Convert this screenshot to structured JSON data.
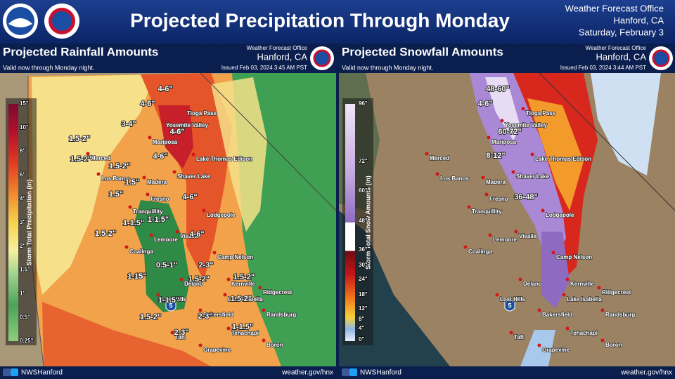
{
  "header": {
    "title": "Projected Precipitation Through Monday",
    "office": "Weather Forecast Office",
    "location": "Hanford, CA",
    "date": "Saturday, February 3"
  },
  "map_labels": {
    "cities": [
      "Merced",
      "Los Banos",
      "Madera",
      "Fresno",
      "Tranquillity",
      "Mariposa",
      "Yosemite Valley",
      "Tioga Pass",
      "Lake Thomas Edison",
      "Shaver Lake",
      "Lodgepole",
      "Lemoore",
      "Visalia",
      "Coalinga",
      "Camp Nelson",
      "Delano",
      "Kernville",
      "Lake Isabella",
      "Ridgecrest",
      "Lost Hills",
      "Bakersfield",
      "Randsburg",
      "Taft",
      "Tehachapi",
      "Grapevine",
      "Boron"
    ],
    "interstate": "5"
  },
  "panels": [
    {
      "title": "Projected Rainfall Amounts",
      "subtitle": "Valid now through Monday night.",
      "office": "Weather Forecast Office",
      "location": "Hanford, CA",
      "issued": "Issued Feb 03, 2024 3:45 AM PST",
      "legend_title": "Storm Total Precipitation (in)",
      "legend_labels": [
        "15\"",
        "10\"",
        "8\"",
        "6\"",
        "4\"",
        "3\"",
        "2\"",
        "1.5\"",
        "1\"",
        "0.5\"",
        "0.25\""
      ],
      "amounts": [
        "4-6\"",
        "4-6\"",
        "3-4\"",
        "4-6\"",
        "1.5-2\"",
        "1.5-2\"",
        "4-6\"",
        "1.5-2\"",
        "1.5\"",
        "1.5\"",
        "4-6\"",
        "1-1.5\"",
        "1-1.5\"",
        "4-6\"",
        "1.5-2\"",
        "2-3\"",
        "0.5-1\"",
        "1-15\"",
        "1.5-2\"",
        "1.5-2\"",
        "1.5-2\"",
        "1-1.5\"",
        "1.5-2\"",
        "2-3\"",
        "2-3\"",
        "1-1.5\""
      ],
      "footer_handle": "NWSHanford",
      "footer_url": "weather.gov/hnx"
    },
    {
      "title": "Projected Snowfall Amounts",
      "subtitle": "Valid now through Monday night.",
      "office": "Weather Forecast Office",
      "location": "Hanford, CA",
      "issued": "Issued Feb 03, 2024 3:44 AM PST",
      "legend_title": "Storm Total Snow Amounts (in)",
      "legend_labels": [
        "96\"",
        "72\"",
        "60\"",
        "48\"",
        "36\"",
        "30\"",
        "24\"",
        "18\"",
        "12\"",
        "8\"",
        "4\"",
        "0\""
      ],
      "amounts": [
        "48-60\"",
        "4-6\"",
        "60-72\"",
        "8-12\"",
        "36-48\""
      ],
      "footer_handle": "NWSHanford",
      "footer_url": "weather.gov/hnx"
    }
  ]
}
